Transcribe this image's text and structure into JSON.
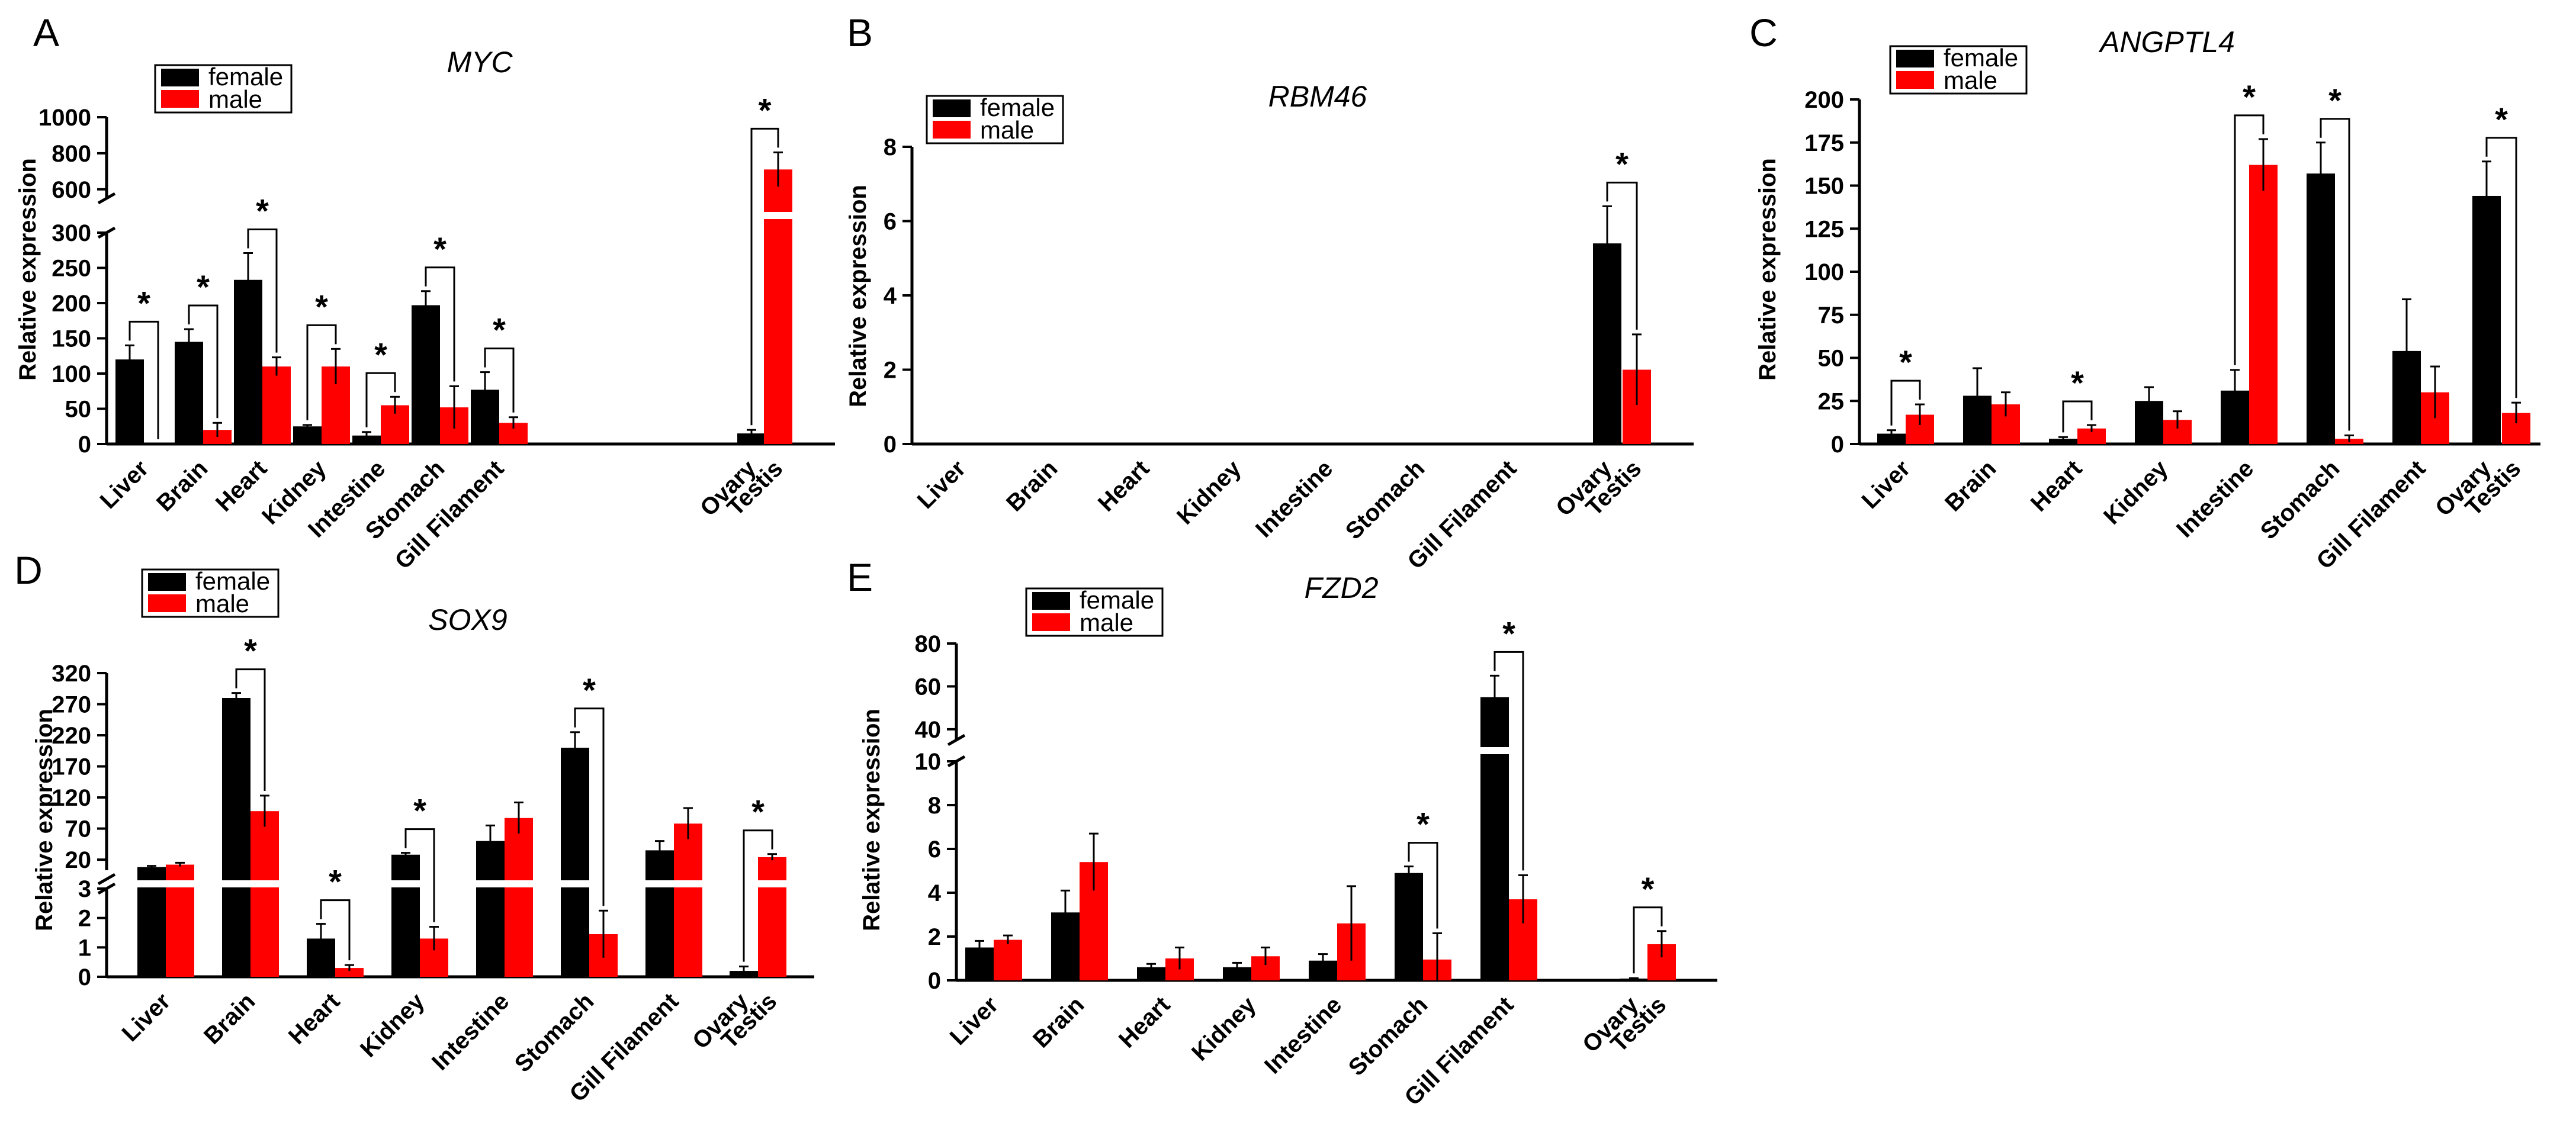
{
  "colors": {
    "female": "#000000",
    "male": "#ff0000",
    "axis": "#000000"
  },
  "legend": {
    "female": "female",
    "male": "male"
  },
  "chart_data": [
    {
      "id": "A",
      "type": "bar",
      "title": "MYC",
      "ylabel": "Relative expression",
      "categories": [
        "Liver",
        "Brain",
        "Heart",
        "Kidney",
        "Intestine",
        "Stomach",
        "Gill Filament",
        "Ovary",
        "Testis"
      ],
      "broken_axis": true,
      "ylim_lower": [
        0,
        300
      ],
      "ylim_upper": [
        550,
        1000
      ],
      "yticks_lower": [
        0,
        50,
        100,
        150,
        200,
        250,
        300
      ],
      "yticks_upper": [
        600,
        800,
        1000
      ],
      "series": [
        {
          "name": "female",
          "values": [
            120,
            145,
            233,
            25,
            12,
            197,
            77,
            15,
            null
          ],
          "errors": [
            20,
            18,
            38,
            2,
            5,
            20,
            25,
            5,
            null
          ]
        },
        {
          "name": "male",
          "values": [
            null,
            20,
            110,
            110,
            55,
            52,
            30,
            null,
            710
          ],
          "errors": [
            null,
            10,
            13,
            25,
            12,
            30,
            8,
            null,
            95
          ]
        }
      ],
      "significance": [
        0,
        1,
        2,
        3,
        4,
        5,
        6,
        8
      ]
    },
    {
      "id": "B",
      "type": "bar",
      "title": "RBM46",
      "ylabel": "Relative expression",
      "categories": [
        "Liver",
        "Brain",
        "Heart",
        "Kidney",
        "Intestine",
        "Stomach",
        "Gill Filament",
        "Ovary",
        "Testis"
      ],
      "broken_axis": false,
      "ylim": [
        0,
        8
      ],
      "yticks": [
        0,
        2,
        4,
        6,
        8
      ],
      "series": [
        {
          "name": "female",
          "values": [
            0,
            0,
            0,
            0,
            0,
            0,
            0,
            5.4,
            null
          ],
          "errors": [
            0,
            0,
            0,
            0,
            0,
            0,
            0,
            1.0,
            null
          ]
        },
        {
          "name": "male",
          "values": [
            0,
            0,
            0,
            0,
            0,
            0,
            0,
            null,
            2.0
          ],
          "errors": [
            0,
            0,
            0,
            0,
            0,
            0,
            0,
            null,
            0.95
          ]
        }
      ],
      "significance": [
        7
      ]
    },
    {
      "id": "C",
      "type": "bar",
      "title": "ANGPTL4",
      "ylabel": "Relative expression",
      "categories": [
        "Liver",
        "Brain",
        "Heart",
        "Kidney",
        "Intestine",
        "Stomach",
        "Gill Filament",
        "Ovary",
        "Testis"
      ],
      "broken_axis": false,
      "ylim": [
        0,
        200
      ],
      "yticks": [
        0,
        25,
        50,
        75,
        100,
        125,
        150,
        175,
        200
      ],
      "series": [
        {
          "name": "female",
          "values": [
            6,
            28,
            3,
            25,
            31,
            157,
            54,
            144,
            null
          ],
          "errors": [
            2,
            16,
            1,
            8,
            12,
            18,
            30,
            20,
            null
          ]
        },
        {
          "name": "male",
          "values": [
            17,
            23,
            9,
            14,
            162,
            3,
            30,
            null,
            18
          ],
          "errors": [
            6,
            7,
            2,
            5,
            15,
            2,
            15,
            null,
            6
          ]
        }
      ],
      "significance": [
        0,
        2,
        4,
        5,
        7
      ]
    },
    {
      "id": "D",
      "type": "bar",
      "title": "SOX9",
      "ylabel": "Relative expression",
      "categories": [
        "Liver",
        "Brain",
        "Heart",
        "Kidney",
        "Intestine",
        "Stomach",
        "Gill Filament",
        "Ovary",
        "Testis"
      ],
      "broken_axis": true,
      "ylim_lower": [
        0,
        3
      ],
      "ylim_upper": [
        3,
        320
      ],
      "yticks_lower": [
        0,
        1,
        2,
        3
      ],
      "yticks_upper": [
        20,
        70,
        120,
        170,
        220,
        270,
        320
      ],
      "series": [
        {
          "name": "female",
          "values": [
            8,
            280,
            1.3,
            28,
            50,
            200,
            35,
            0.2,
            null
          ],
          "errors": [
            2,
            8,
            0.5,
            3,
            25,
            25,
            15,
            0.15,
            null
          ]
        },
        {
          "name": "male",
          "values": [
            12,
            98,
            0.3,
            1.3,
            87,
            1.45,
            78,
            null,
            24
          ],
          "errors": [
            3,
            25,
            0.1,
            0.4,
            25,
            0.8,
            25,
            null,
            5
          ]
        }
      ],
      "significance": [
        1,
        2,
        3,
        5,
        8
      ]
    },
    {
      "id": "E",
      "type": "bar",
      "title": "FZD2",
      "ylabel": "Relative expression",
      "categories": [
        "Liver",
        "Brain",
        "Heart",
        "Kidney",
        "Intestine",
        "Stomach",
        "Gill Filament",
        "Ovary",
        "Testis"
      ],
      "broken_axis": true,
      "ylim_lower": [
        0,
        10
      ],
      "ylim_upper": [
        35,
        80
      ],
      "yticks_lower": [
        0,
        2,
        4,
        6,
        8,
        10
      ],
      "yticks_upper": [
        40,
        60,
        80
      ],
      "series": [
        {
          "name": "female",
          "values": [
            1.5,
            3.1,
            0.6,
            0.6,
            0.9,
            4.9,
            55,
            0.05,
            null
          ],
          "errors": [
            0.3,
            1.0,
            0.15,
            0.2,
            0.3,
            0.3,
            10,
            0.05,
            null
          ]
        },
        {
          "name": "male",
          "values": [
            1.85,
            5.4,
            1.0,
            1.1,
            2.6,
            0.95,
            3.7,
            null,
            1.65
          ],
          "errors": [
            0.2,
            1.3,
            0.5,
            0.4,
            1.7,
            1.2,
            1.1,
            null,
            0.6
          ]
        }
      ],
      "significance": [
        5,
        6,
        8
      ]
    }
  ]
}
